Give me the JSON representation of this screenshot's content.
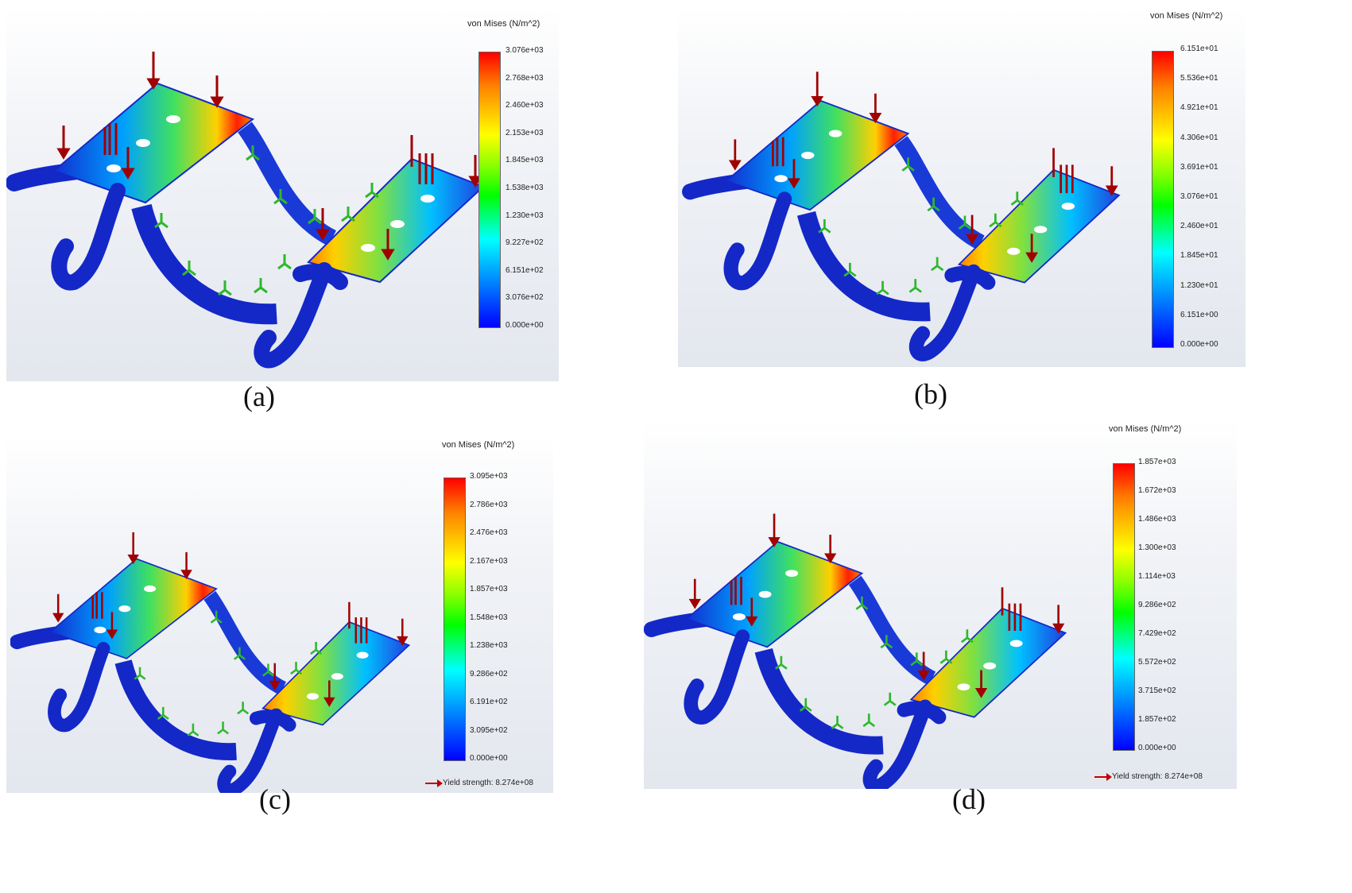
{
  "panels": [
    {
      "caption": "(a)",
      "legend_title": "von Mises (N/m^2)",
      "ticks": [
        "3.076e+03",
        "2.768e+03",
        "2.460e+03",
        "2.153e+03",
        "1.845e+03",
        "1.538e+03",
        "1.230e+03",
        "9.227e+02",
        "6.151e+02",
        "3.076e+02",
        "0.000e+00"
      ],
      "yield": ""
    },
    {
      "caption": "(b)",
      "legend_title": "von Mises (N/m^2)",
      "ticks": [
        "6.151e+01",
        "5.536e+01",
        "4.921e+01",
        "4.306e+01",
        "3.691e+01",
        "3.076e+01",
        "2.460e+01",
        "1.845e+01",
        "1.230e+01",
        "6.151e+00",
        "0.000e+00"
      ],
      "yield": ""
    },
    {
      "caption": "(c)",
      "legend_title": "von Mises (N/m^2)",
      "ticks": [
        "3.095e+03",
        "2.786e+03",
        "2.476e+03",
        "2.167e+03",
        "1.857e+03",
        "1.548e+03",
        "1.238e+03",
        "9.286e+02",
        "6.191e+02",
        "3.095e+02",
        "0.000e+00"
      ],
      "yield": "Yield strength: 8.274e+08"
    },
    {
      "caption": "(d)",
      "legend_title": "von Mises (N/m^2)",
      "ticks": [
        "1.857e+03",
        "1.672e+03",
        "1.486e+03",
        "1.300e+03",
        "1.114e+03",
        "9.286e+02",
        "7.429e+02",
        "5.572e+02",
        "3.715e+02",
        "1.857e+02",
        "0.000e+00"
      ],
      "yield": "Yield strength: 8.274e+08"
    }
  ],
  "colors": {
    "max": "#ff0000",
    "min": "#0000ff",
    "load_arrow": "#a00000",
    "fixture_arrow": "#2db82d"
  }
}
